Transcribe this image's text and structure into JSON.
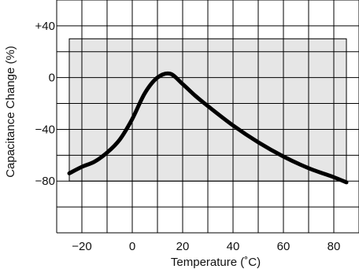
{
  "chart_data": {
    "type": "line",
    "title": "",
    "xlabel": "Temperature (˚C)",
    "ylabel": "Capacitance Change (%)",
    "xlim": [
      -30,
      90
    ],
    "ylim": [
      -120,
      60
    ],
    "grid": true,
    "x_ticks": [
      -20,
      0,
      20,
      40,
      60,
      80
    ],
    "x_tick_labels": [
      "−20",
      "0",
      "20",
      "40",
      "60",
      "80"
    ],
    "y_ticks": [
      40,
      0,
      -40,
      -80
    ],
    "y_tick_labels": [
      "+40",
      "0",
      "−40",
      "−80"
    ],
    "shaded_region": {
      "x": [
        -25,
        85
      ],
      "y": [
        -80,
        30
      ]
    },
    "series": [
      {
        "x": [
          -25,
          -20,
          -15,
          -10,
          -5,
          0,
          5,
          10,
          15,
          20,
          25,
          30,
          40,
          50,
          60,
          70,
          80,
          85
        ],
        "values": [
          -74,
          -69,
          -65,
          -58,
          -48,
          -32,
          -12,
          0,
          3,
          -5,
          -14,
          -22,
          -37,
          -50,
          -61,
          -70,
          -77,
          -81
        ]
      }
    ],
    "colors": {
      "line": "#000000",
      "grid": "#000000",
      "shade": "#e6e6e6"
    }
  }
}
